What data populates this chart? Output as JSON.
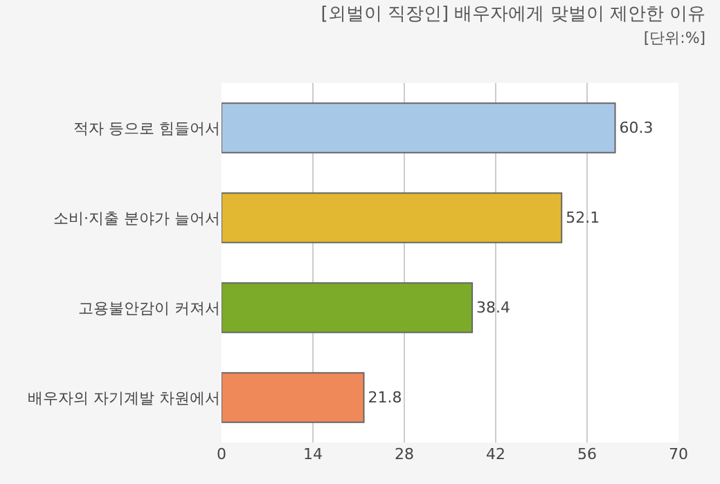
{
  "chart_data": {
    "type": "bar",
    "orientation": "horizontal",
    "title": "[외벌이 직장인] 배우자에게 맞벌이 제안한 이유",
    "subtitle": "[단위:%]",
    "categories": [
      "적자 등으로 힘들어서",
      "소비·지출 분야가 늘어서",
      "고용불안감이 커져서",
      "배우자의 자기계발 차원에서"
    ],
    "values": [
      60.3,
      52.1,
      38.4,
      21.8
    ],
    "colors": [
      "#a8c8e8",
      "#e2b832",
      "#7cab2a",
      "#f0895a"
    ],
    "xlim": [
      0,
      70
    ],
    "xticks": [
      0,
      14,
      28,
      42,
      56,
      70
    ],
    "grid": "x",
    "data_labels": true
  }
}
